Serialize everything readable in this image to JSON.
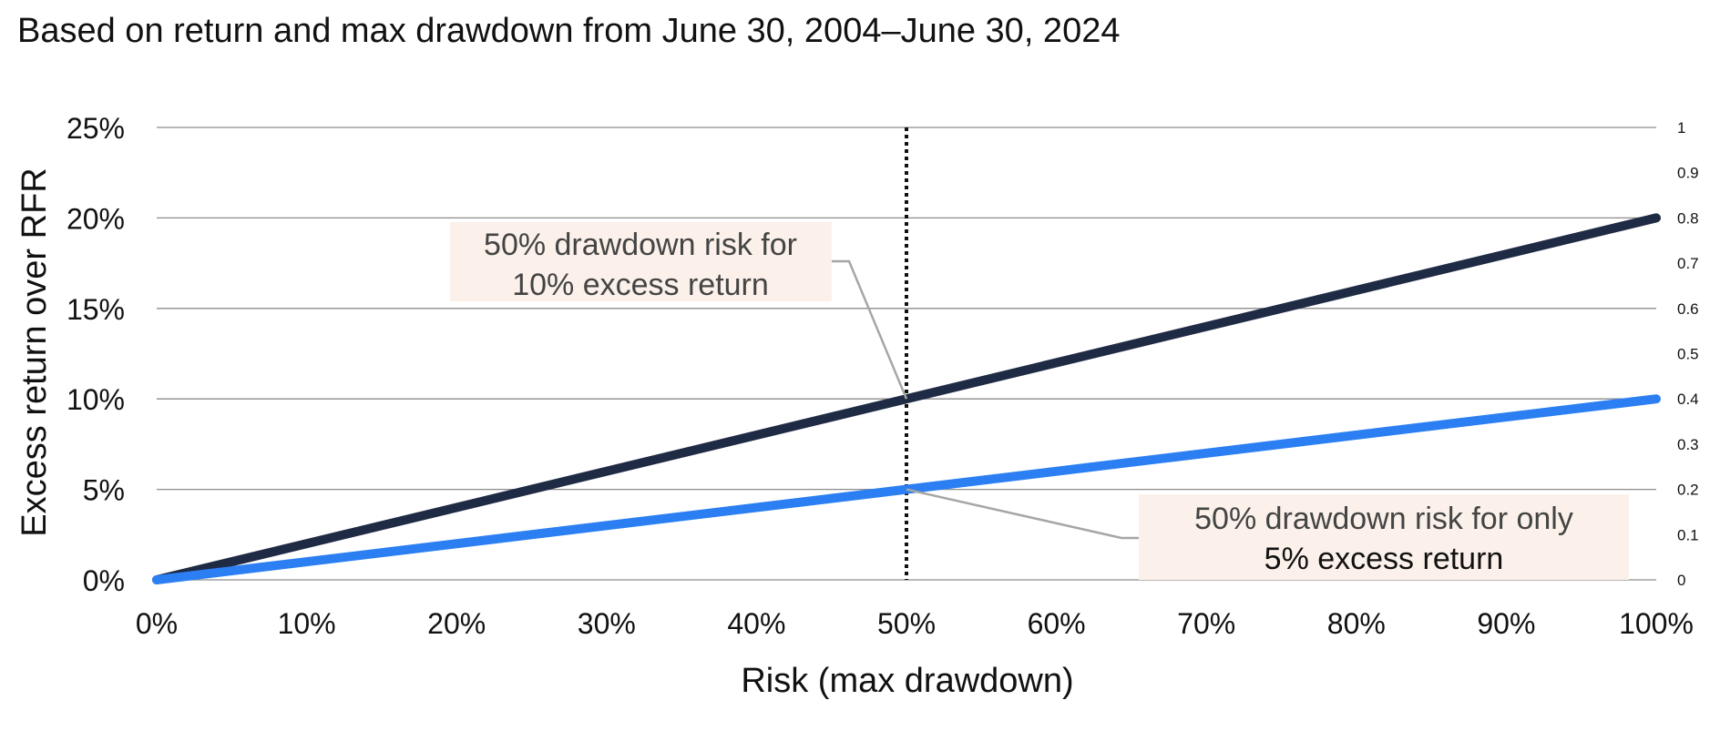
{
  "chart_data": {
    "type": "line",
    "subtitle": "Based on return and max drawdown from June 30, 2004–June 30, 2024",
    "xlabel": "Risk (max drawdown)",
    "ylabel": "Excess return over RFR",
    "xlim": [
      0,
      100
    ],
    "ylim": [
      0,
      25
    ],
    "y2lim": [
      0,
      1
    ],
    "x_ticks": [
      "0%",
      "10%",
      "20%",
      "30%",
      "40%",
      "50%",
      "60%",
      "70%",
      "80%",
      "90%",
      "100%"
    ],
    "y_ticks": [
      "0%",
      "5%",
      "10%",
      "15%",
      "20%",
      "25%"
    ],
    "y2_ticks": [
      "0",
      "0.1",
      "0.2",
      "0.3",
      "0.4",
      "0.5",
      "0.6",
      "0.7",
      "0.8",
      "0.9",
      "1"
    ],
    "grid": true,
    "series": [
      {
        "color": "#1f2a44",
        "x": [
          0,
          100
        ],
        "y": [
          0,
          20
        ]
      },
      {
        "color": "#2b7ff2",
        "x": [
          0,
          100
        ],
        "y": [
          0,
          10
        ]
      }
    ],
    "reference_line": {
      "x": 50,
      "style": "dotted",
      "color": "#111111"
    },
    "annotations": [
      {
        "lines": [
          "50% drawdown risk for",
          "10% excess return"
        ],
        "point": {
          "x": 50,
          "y": 10
        },
        "box_color": "#fbf1ea"
      },
      {
        "lines": [
          "50% drawdown risk for only",
          "5% excess return"
        ],
        "point": {
          "x": 50,
          "y": 5
        },
        "box_color": "#fbf1ea"
      }
    ]
  }
}
